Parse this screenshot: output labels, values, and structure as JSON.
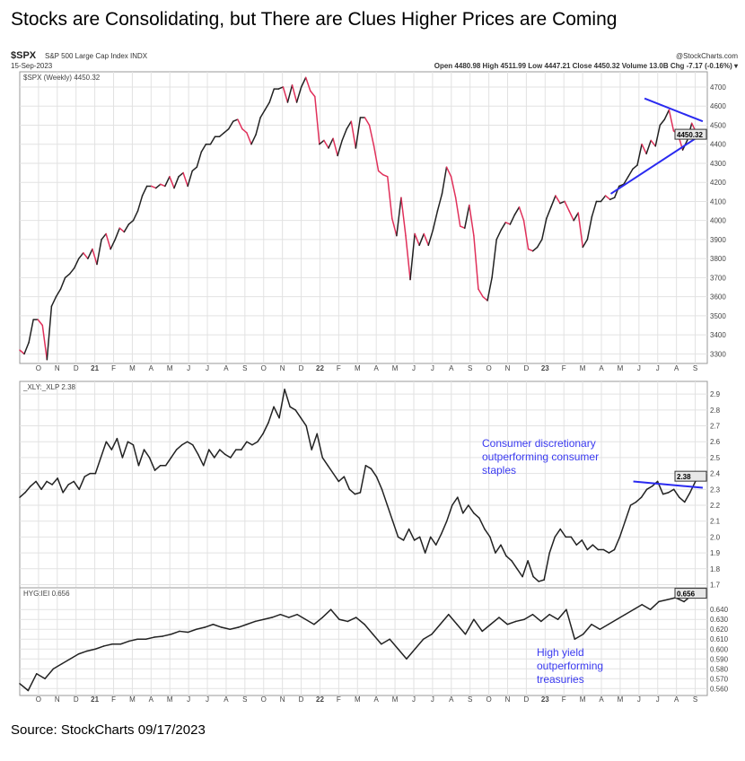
{
  "title": "Stocks are Consolidating, but There are Clues Higher Prices are Coming",
  "source": "Source: StockCharts 09/17/2023",
  "header": {
    "symbol": "$SPX",
    "name": "S&P 500 Large Cap Index INDX",
    "date": "15-Sep-2023",
    "brand": "@StockCharts.com",
    "quote": "Open 4480.98  High 4511.99  Low 4447.21  Close 4450.32  Volume 13.0B  Chg -7.17 (-0.16%) ▾"
  },
  "colors": {
    "up": "#222222",
    "down": "#e0305a",
    "trend": "#2a2af0",
    "annotation": "#3a3af0",
    "grid": "#e2e2e2"
  },
  "chart_data": [
    {
      "type": "line",
      "title": "$SPX (Weekly) 4450.32",
      "last_label": "4450.32",
      "ylim": [
        3250,
        4780
      ],
      "yticks": [
        3300,
        3400,
        3500,
        3600,
        3700,
        3800,
        3900,
        4000,
        4100,
        4200,
        4300,
        4400,
        4500,
        4600,
        4700
      ],
      "values": [
        3320,
        3300,
        3360,
        3480,
        3480,
        3450,
        3270,
        3550,
        3600,
        3640,
        3700,
        3720,
        3750,
        3800,
        3830,
        3800,
        3850,
        3770,
        3900,
        3930,
        3850,
        3900,
        3960,
        3940,
        3980,
        4000,
        4050,
        4130,
        4180,
        4180,
        4170,
        4190,
        4180,
        4230,
        4170,
        4230,
        4250,
        4180,
        4260,
        4280,
        4360,
        4400,
        4400,
        4440,
        4440,
        4460,
        4480,
        4520,
        4530,
        4480,
        4460,
        4400,
        4450,
        4540,
        4580,
        4620,
        4690,
        4690,
        4700,
        4620,
        4710,
        4620,
        4700,
        4750,
        4680,
        4650,
        4400,
        4420,
        4380,
        4430,
        4340,
        4420,
        4480,
        4520,
        4380,
        4540,
        4540,
        4500,
        4390,
        4260,
        4240,
        4230,
        4010,
        3920,
        4120,
        3920,
        3690,
        3930,
        3870,
        3930,
        3870,
        3950,
        4050,
        4140,
        4280,
        4230,
        4120,
        3970,
        3960,
        4080,
        3920,
        3640,
        3600,
        3580,
        3700,
        3900,
        3950,
        3990,
        3980,
        4030,
        4070,
        4000,
        3850,
        3840,
        3860,
        3900,
        4010,
        4070,
        4130,
        4090,
        4100,
        4050,
        4000,
        4040,
        3860,
        3900,
        4020,
        4100,
        4100,
        4130,
        4110,
        4120,
        4180,
        4190,
        4230,
        4270,
        4290,
        4400,
        4350,
        4420,
        4390,
        4500,
        4530,
        4580,
        4470,
        4450,
        4370,
        4420,
        4510,
        4460,
        4450
      ],
      "trendlines": [
        {
          "x": [
            31.5,
            36.4
          ],
          "y": [
            4140,
            4455
          ]
        },
        {
          "x": [
            33.3,
            36.4
          ],
          "y": [
            4640,
            4520
          ]
        }
      ]
    },
    {
      "type": "line",
      "title": "_XLY:_XLP 2.38",
      "last_label": "2.38",
      "ylim": [
        1.68,
        2.98
      ],
      "yticks": [
        1.7,
        1.8,
        1.9,
        2.0,
        2.1,
        2.2,
        2.3,
        2.4,
        2.5,
        2.6,
        2.7,
        2.8,
        2.9
      ],
      "values": [
        2.25,
        2.28,
        2.32,
        2.35,
        2.3,
        2.35,
        2.33,
        2.37,
        2.28,
        2.33,
        2.35,
        2.3,
        2.38,
        2.4,
        2.4,
        2.5,
        2.6,
        2.55,
        2.62,
        2.5,
        2.6,
        2.58,
        2.45,
        2.55,
        2.5,
        2.42,
        2.45,
        2.45,
        2.5,
        2.55,
        2.58,
        2.6,
        2.58,
        2.52,
        2.45,
        2.55,
        2.5,
        2.55,
        2.52,
        2.5,
        2.55,
        2.55,
        2.6,
        2.58,
        2.6,
        2.65,
        2.72,
        2.82,
        2.75,
        2.93,
        2.82,
        2.8,
        2.75,
        2.7,
        2.55,
        2.65,
        2.5,
        2.45,
        2.4,
        2.35,
        2.38,
        2.3,
        2.27,
        2.28,
        2.45,
        2.43,
        2.38,
        2.3,
        2.2,
        2.1,
        2.0,
        1.98,
        2.05,
        1.98,
        2.0,
        1.9,
        2.0,
        1.95,
        2.02,
        2.1,
        2.2,
        2.25,
        2.15,
        2.2,
        2.15,
        2.12,
        2.05,
        2.0,
        1.9,
        1.95,
        1.88,
        1.85,
        1.8,
        1.75,
        1.85,
        1.75,
        1.72,
        1.73,
        1.9,
        2.0,
        2.05,
        2.0,
        2.0,
        1.95,
        1.98,
        1.92,
        1.95,
        1.92,
        1.92,
        1.9,
        1.92,
        2.0,
        2.1,
        2.2,
        2.22,
        2.25,
        2.3,
        2.32,
        2.35,
        2.27,
        2.28,
        2.3,
        2.25,
        2.22,
        2.28,
        2.35,
        2.38
      ],
      "trendlines": [
        {
          "x": [
            32.7,
            36.4
          ],
          "y": [
            2.35,
            2.31
          ]
        }
      ],
      "annotation": [
        "Consumer discretionary",
        "outperforming consumer",
        "staples"
      ]
    },
    {
      "type": "line",
      "title": "HYG:IEI 0.656",
      "last_label": "0.656",
      "ylim": [
        0.553,
        0.662
      ],
      "yticks": [
        0.56,
        0.57,
        0.58,
        0.59,
        0.6,
        0.61,
        0.62,
        0.63,
        0.64
      ],
      "values": [
        0.565,
        0.558,
        0.575,
        0.57,
        0.58,
        0.585,
        0.59,
        0.595,
        0.598,
        0.6,
        0.603,
        0.605,
        0.605,
        0.608,
        0.61,
        0.61,
        0.612,
        0.613,
        0.615,
        0.618,
        0.617,
        0.62,
        0.622,
        0.625,
        0.622,
        0.62,
        0.622,
        0.625,
        0.628,
        0.63,
        0.632,
        0.635,
        0.632,
        0.635,
        0.63,
        0.625,
        0.632,
        0.64,
        0.63,
        0.628,
        0.632,
        0.625,
        0.615,
        0.605,
        0.61,
        0.6,
        0.59,
        0.6,
        0.61,
        0.615,
        0.625,
        0.635,
        0.625,
        0.615,
        0.63,
        0.618,
        0.625,
        0.632,
        0.625,
        0.628,
        0.63,
        0.635,
        0.628,
        0.635,
        0.63,
        0.64,
        0.61,
        0.615,
        0.625,
        0.62,
        0.625,
        0.63,
        0.635,
        0.64,
        0.645,
        0.64,
        0.648,
        0.65,
        0.652,
        0.648,
        0.655,
        0.656
      ],
      "annotation": [
        "High yield",
        "outperforming",
        "treasuries"
      ]
    }
  ],
  "xaxis": {
    "range_months": [
      0,
      36.5
    ],
    "ticks": [
      "O",
      "N",
      "D",
      "21",
      "F",
      "M",
      "A",
      "M",
      "J",
      "J",
      "A",
      "S",
      "O",
      "N",
      "D",
      "22",
      "F",
      "M",
      "A",
      "M",
      "J",
      "J",
      "A",
      "S",
      "O",
      "N",
      "D",
      "23",
      "F",
      "M",
      "A",
      "M",
      "J",
      "J",
      "A",
      "S"
    ]
  }
}
